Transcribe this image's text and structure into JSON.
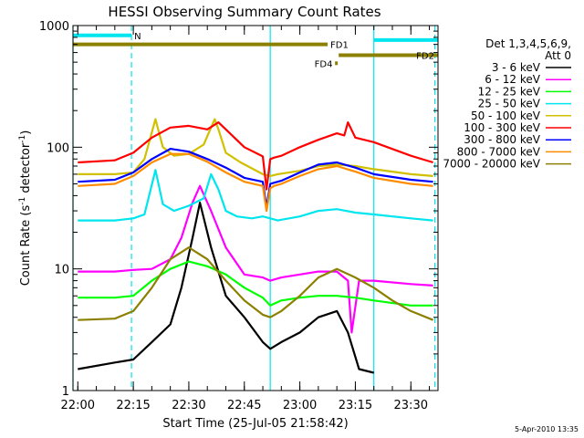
{
  "chart_data": {
    "type": "line",
    "title": "HESSI Observing Summary Count Rates",
    "xlabel": "Start Time (25-Jul-05 21:58:42)",
    "ylabel_main": "Count Rate (s",
    "ylabel_sup1": "-1",
    "ylabel_mid": " detector",
    "ylabel_sup2": "-1",
    "ylabel_end": ")",
    "y_scale": "log",
    "ylim": [
      1,
      1000
    ],
    "xlim": [
      "21:58:42",
      "23:37:20"
    ],
    "x_ticks": [
      "22:00",
      "22:15",
      "22:30",
      "22:45",
      "23:00",
      "23:15",
      "23:30"
    ],
    "y_ticks": [
      "1",
      "10",
      "100",
      "1000"
    ],
    "legend_header": [
      "Det 1,3,4,5,6,9,",
      "Att 0"
    ],
    "legend_placement": "right",
    "timestamp": "5-Apr-2010 13:35",
    "flags": [
      {
        "label": "N",
        "color": "#00e5ee",
        "segments": [
          [
            "21:58:42",
            "22:14:30"
          ]
        ],
        "level": 830
      },
      {
        "label": "FD1",
        "color": "#8b8000",
        "segments": [
          [
            "21:58:42",
            "23:07:30"
          ]
        ],
        "level": 700
      },
      {
        "label": "",
        "color": "#00e5ee",
        "segments": [
          [
            "23:20:00",
            "23:37:20"
          ]
        ],
        "level": 760
      },
      {
        "label": "FD2",
        "color": "#8b8000",
        "segments": [
          [
            "23:10:30",
            "23:37:20"
          ]
        ],
        "level": 570
      },
      {
        "label": "FD4",
        "color": "#8b8000",
        "segments": [
          [
            "23:09:30",
            "23:09:50"
          ]
        ],
        "level": 490
      }
    ],
    "vlines": [
      {
        "time": "21:58:42",
        "color": "#00e5ee",
        "dash": false
      },
      {
        "time": "22:14:30",
        "color": "#00e5ee",
        "dash": true
      },
      {
        "time": "22:52:00",
        "color": "#00e5ee",
        "dash": false
      },
      {
        "time": "23:20:00",
        "color": "#00e5ee",
        "dash": false
      },
      {
        "time": "23:36:30",
        "color": "#00e5ee",
        "dash": true
      }
    ],
    "series": [
      {
        "name": "3 - 6 keV",
        "color": "#000000",
        "x": [
          "22:00",
          "22:10",
          "22:15",
          "22:20",
          "22:25",
          "22:28",
          "22:31",
          "22:33",
          "22:36",
          "22:40",
          "22:45",
          "22:50",
          "22:52",
          "22:55",
          "23:00",
          "23:05",
          "23:10",
          "23:13",
          "23:16",
          "23:20"
        ],
        "y": [
          1.5,
          1.7,
          1.8,
          2.5,
          3.5,
          7,
          18,
          35,
          15,
          6,
          4,
          2.5,
          2.2,
          2.5,
          3,
          4,
          4.5,
          3,
          1.5,
          1.4
        ]
      },
      {
        "name": "6 - 12 keV",
        "color": "#ff00ff",
        "x": [
          "22:00",
          "22:10",
          "22:15",
          "22:20",
          "22:25",
          "22:28",
          "22:31",
          "22:33",
          "22:36",
          "22:40",
          "22:45",
          "22:50",
          "22:52",
          "22:55",
          "23:00",
          "23:05",
          "23:10",
          "23:13",
          "23:14",
          "23:16",
          "23:20",
          "23:30",
          "23:36"
        ],
        "y": [
          9.5,
          9.5,
          9.8,
          10,
          12,
          18,
          35,
          48,
          30,
          15,
          9,
          8.5,
          8,
          8.5,
          9,
          9.5,
          9.5,
          8,
          3,
          8,
          8,
          7.5,
          7.3
        ]
      },
      {
        "name": "12 - 25 keV",
        "color": "#00ff00",
        "x": [
          "22:00",
          "22:10",
          "22:15",
          "22:20",
          "22:25",
          "22:30",
          "22:35",
          "22:40",
          "22:45",
          "22:50",
          "22:52",
          "22:55",
          "23:00",
          "23:05",
          "23:10",
          "23:15",
          "23:20",
          "23:30",
          "23:36"
        ],
        "y": [
          5.8,
          5.8,
          6,
          8,
          10,
          11.5,
          10.5,
          9,
          7,
          5.8,
          5,
          5.5,
          5.8,
          6,
          6,
          5.8,
          5.5,
          5,
          5
        ]
      },
      {
        "name": "25 - 50 keV",
        "color": "#00e5ee",
        "x": [
          "22:00",
          "22:10",
          "22:15",
          "22:18",
          "22:21",
          "22:23",
          "22:26",
          "22:30",
          "22:34",
          "22:36",
          "22:38",
          "22:40",
          "22:43",
          "22:47",
          "22:50",
          "22:52",
          "22:54",
          "23:00",
          "23:05",
          "23:10",
          "23:15",
          "23:20",
          "23:30",
          "23:36"
        ],
        "y": [
          25,
          25,
          26,
          28,
          65,
          34,
          30,
          33,
          38,
          60,
          45,
          30,
          27,
          26,
          27,
          26,
          25,
          27,
          30,
          31,
          29,
          28,
          26,
          25
        ]
      },
      {
        "name": "50 - 100 keV",
        "color": "#d0c000",
        "x": [
          "22:00",
          "22:10",
          "22:15",
          "22:18",
          "22:21",
          "22:23",
          "22:26",
          "22:30",
          "22:34",
          "22:37",
          "22:38",
          "22:40",
          "22:44",
          "22:50",
          "22:52",
          "22:54",
          "23:00",
          "23:05",
          "23:10",
          "23:15",
          "23:20",
          "23:30",
          "23:36"
        ],
        "y": [
          60,
          60,
          62,
          80,
          170,
          100,
          85,
          88,
          105,
          170,
          140,
          90,
          75,
          60,
          58,
          60,
          64,
          70,
          72,
          70,
          66,
          60,
          58
        ]
      },
      {
        "name": "100 - 300 keV",
        "color": "#ff0000",
        "x": [
          "22:00",
          "22:10",
          "22:15",
          "22:20",
          "22:25",
          "22:30",
          "22:35",
          "22:38",
          "22:40",
          "22:45",
          "22:50",
          "22:51",
          "22:52",
          "22:53",
          "22:55",
          "23:00",
          "23:05",
          "23:10",
          "23:12",
          "23:13",
          "23:15",
          "23:20",
          "23:30",
          "23:36"
        ],
        "y": [
          75,
          78,
          90,
          120,
          145,
          150,
          140,
          160,
          140,
          100,
          84,
          45,
          80,
          82,
          85,
          100,
          115,
          130,
          125,
          160,
          120,
          110,
          85,
          75
        ]
      },
      {
        "name": "300 - 800 keV",
        "color": "#0000ff",
        "x": [
          "22:00",
          "22:10",
          "22:15",
          "22:20",
          "22:25",
          "22:30",
          "22:35",
          "22:40",
          "22:45",
          "22:50",
          "22:51",
          "22:52",
          "22:53",
          "22:55",
          "23:00",
          "23:05",
          "23:10",
          "23:15",
          "23:20",
          "23:30",
          "23:36"
        ],
        "y": [
          52,
          54,
          62,
          80,
          97,
          92,
          80,
          68,
          56,
          52,
          32,
          50,
          51,
          53,
          62,
          72,
          75,
          68,
          60,
          54,
          52
        ]
      },
      {
        "name": "800 - 7000 keV",
        "color": "#ff8c00",
        "x": [
          "22:00",
          "22:10",
          "22:15",
          "22:20",
          "22:25",
          "22:30",
          "22:35",
          "22:40",
          "22:45",
          "22:50",
          "22:51",
          "22:52",
          "22:53",
          "22:55",
          "23:00",
          "23:05",
          "23:10",
          "23:15",
          "23:20",
          "23:30",
          "23:36"
        ],
        "y": [
          48,
          50,
          58,
          75,
          88,
          88,
          76,
          62,
          52,
          48,
          30,
          46,
          48,
          50,
          58,
          66,
          70,
          63,
          56,
          50,
          48
        ]
      },
      {
        "name": "7000 - 20000 keV",
        "color": "#8b8000",
        "x": [
          "22:00",
          "22:10",
          "22:15",
          "22:20",
          "22:25",
          "22:30",
          "22:35",
          "22:40",
          "22:45",
          "22:50",
          "22:52",
          "22:55",
          "23:00",
          "23:05",
          "23:10",
          "23:15",
          "23:20",
          "23:25",
          "23:30",
          "23:36"
        ],
        "y": [
          3.8,
          3.9,
          4.5,
          7,
          12,
          15,
          12,
          8,
          5.5,
          4.2,
          4,
          4.5,
          6,
          8.5,
          10,
          8.5,
          7,
          5.5,
          4.5,
          3.8
        ]
      }
    ]
  }
}
